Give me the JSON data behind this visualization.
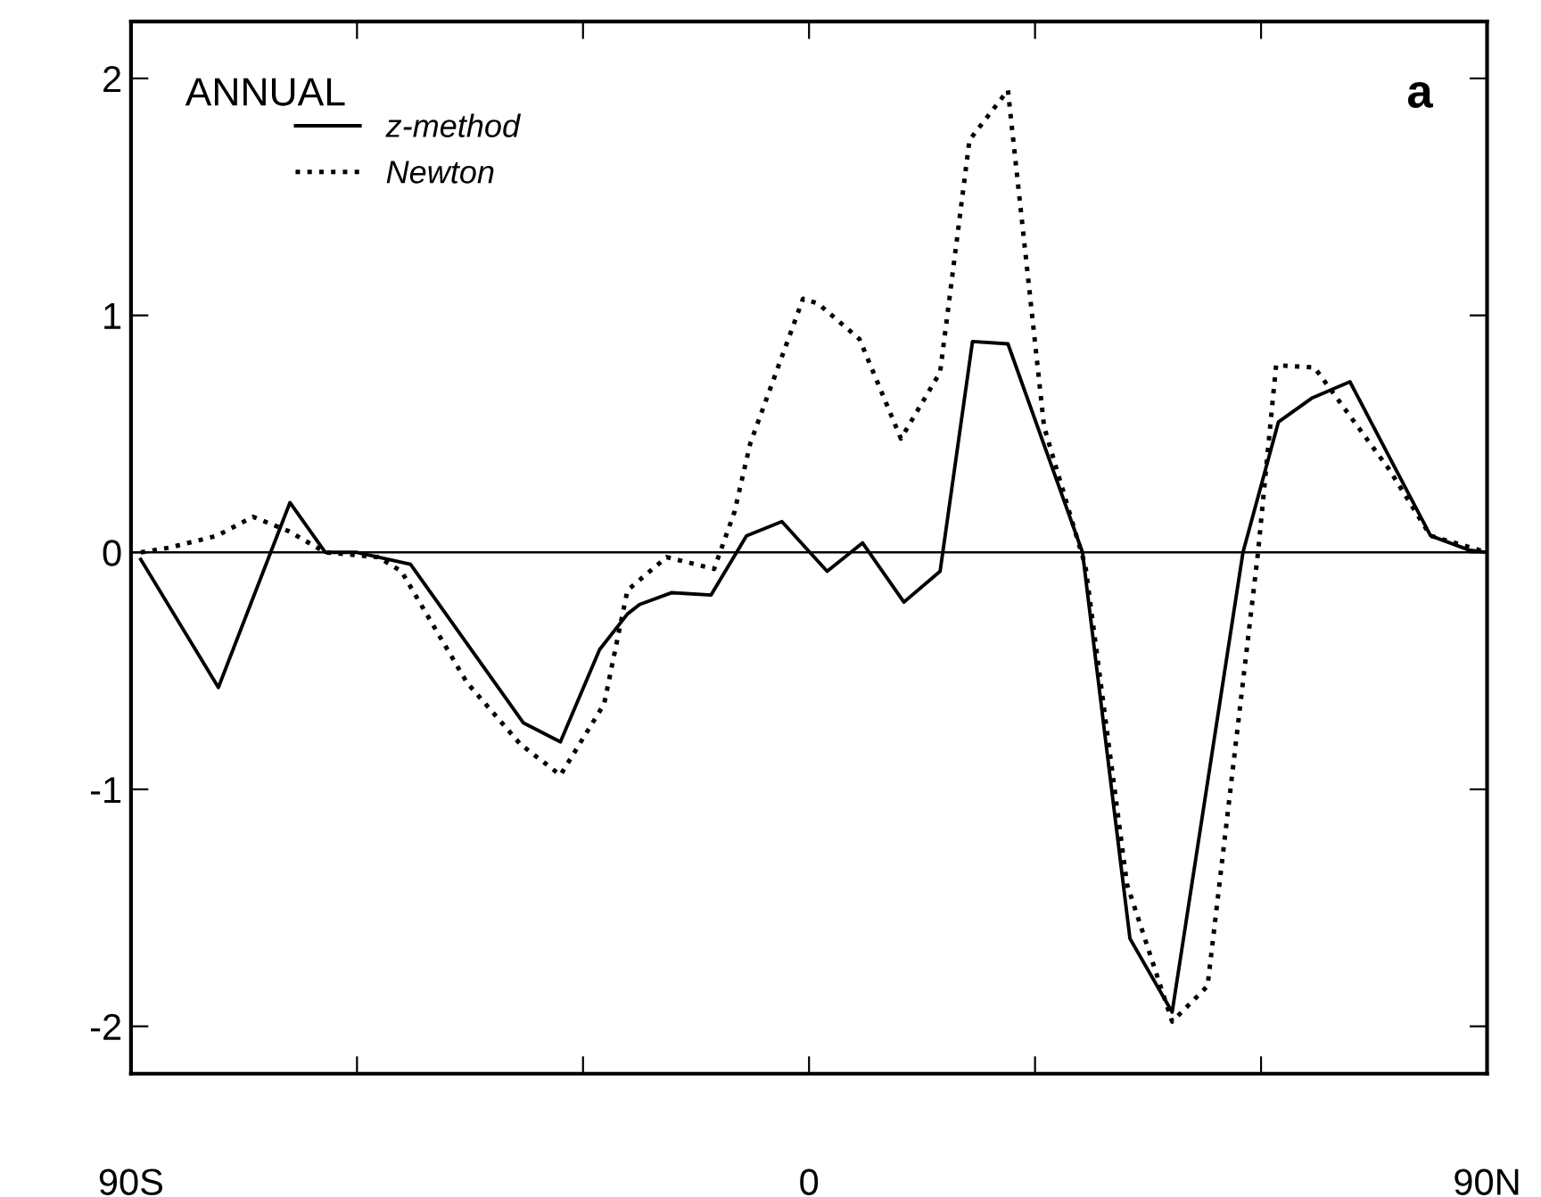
{
  "chart_data": {
    "type": "line",
    "xlim": [
      -90,
      90
    ],
    "ylim": [
      -2.2,
      2.24
    ],
    "xticks": [
      {
        "value": -90,
        "label": "90S"
      },
      {
        "value": -60,
        "label": null
      },
      {
        "value": -30,
        "label": null
      },
      0,
      {
        "value": 30,
        "label": null
      },
      {
        "value": 60,
        "label": null
      },
      {
        "value": 90,
        "label": "90N"
      }
    ],
    "yticks": [
      -2,
      -1,
      0,
      1,
      2
    ],
    "legend": "top left",
    "grid": false,
    "ref_lines": [
      {
        "axis": "y",
        "value": 0,
        "color": "#000000",
        "line_style": "solid"
      }
    ],
    "annotations": [
      "ANNUAL",
      "a"
    ],
    "series": [
      {
        "name": "z-method",
        "color": "#000000",
        "line_style": "solid",
        "x": [
          -88.7,
          -78.4,
          -68.9,
          -64.2,
          -60.0,
          -52.9,
          -37.9,
          -33.0,
          -27.8,
          -24.1,
          -22.5,
          -18.2,
          -13.0,
          -8.3,
          -3.6,
          2.4,
          7.1,
          12.6,
          17.4,
          21.7,
          26.4,
          36.3,
          42.6,
          48.2,
          57.6,
          62.3,
          66.7,
          71.8,
          82.5,
          87.6,
          90
        ],
        "values": [
          -0.03,
          -0.57,
          0.21,
          0,
          0,
          -0.05,
          -0.72,
          -0.8,
          -0.41,
          -0.26,
          -0.22,
          -0.17,
          -0.18,
          0.07,
          0.13,
          -0.08,
          0.04,
          -0.21,
          -0.08,
          0.89,
          0.88,
          0,
          -1.63,
          -1.94,
          0,
          0.55,
          0.65,
          0.72,
          0.07,
          0.01,
          0
        ]
      },
      {
        "name": "Newton",
        "color": "#000000",
        "line_style": "dotted",
        "x": [
          -88.7,
          -84.9,
          -78.6,
          -73.8,
          -69.1,
          -64.2,
          -57.2,
          -54.1,
          -45.4,
          -38.3,
          -33.0,
          -27.2,
          -24.1,
          -18.9,
          -12.6,
          -9.9,
          -7.8,
          -0.8,
          1.2,
          6.7,
          12.2,
          17.4,
          21.3,
          26.4,
          31.2,
          36.7,
          42.2,
          48.2,
          52.9,
          59.6,
          62.0,
          67.1,
          77.0,
          82.5,
          90
        ],
        "values": [
          0,
          0.02,
          0.07,
          0.15,
          0.09,
          0,
          -0.02,
          -0.08,
          -0.55,
          -0.81,
          -0.94,
          -0.64,
          -0.16,
          -0.02,
          -0.07,
          0.17,
          0.46,
          1.07,
          1.05,
          0.9,
          0.48,
          0.76,
          1.74,
          1.95,
          0.53,
          -0.06,
          -1.4,
          -1.98,
          -1.83,
          0,
          0.79,
          0.78,
          0.35,
          0.07,
          0
        ]
      }
    ]
  }
}
